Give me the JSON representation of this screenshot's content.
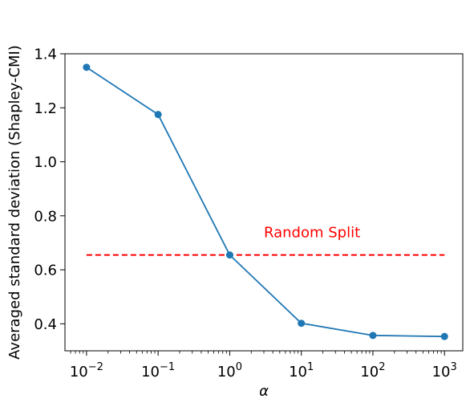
{
  "chart_data": {
    "type": "line",
    "xscale": "log",
    "x": [
      0.01,
      0.1,
      1,
      10,
      100,
      1000
    ],
    "series": [
      {
        "values": [
          1.35,
          1.175,
          0.655,
          0.402,
          0.357,
          0.353
        ],
        "color": "#1f77b4",
        "marker": "circle"
      }
    ],
    "xlabel": "α",
    "ylabel": "Averaged standard deviation (Shapley-CMI)",
    "xlim": [
      0.005,
      1800
    ],
    "ylim": [
      0.3,
      1.4
    ],
    "xticks": [
      {
        "value": 0.01,
        "base": "10",
        "exp": "−2"
      },
      {
        "value": 0.1,
        "base": "10",
        "exp": "−1"
      },
      {
        "value": 1,
        "base": "10",
        "exp": "0"
      },
      {
        "value": 10,
        "base": "10",
        "exp": "1"
      },
      {
        "value": 100,
        "base": "10",
        "exp": "2"
      },
      {
        "value": 1000,
        "base": "10",
        "exp": "3"
      }
    ],
    "yticks": [
      {
        "value": 0.4,
        "label": "0.4"
      },
      {
        "value": 0.6,
        "label": "0.6"
      },
      {
        "value": 0.8,
        "label": "0.8"
      },
      {
        "value": 1.0,
        "label": "1.0"
      },
      {
        "value": 1.2,
        "label": "1.2"
      },
      {
        "value": 1.4,
        "label": "1.4"
      }
    ],
    "grid": false,
    "reference_line": {
      "y": 0.655,
      "x_range": [
        0.01,
        1000
      ],
      "style": "dashed",
      "color": "#ff0000",
      "label": "Random Split",
      "label_x": 3,
      "label_y": 0.72
    }
  }
}
